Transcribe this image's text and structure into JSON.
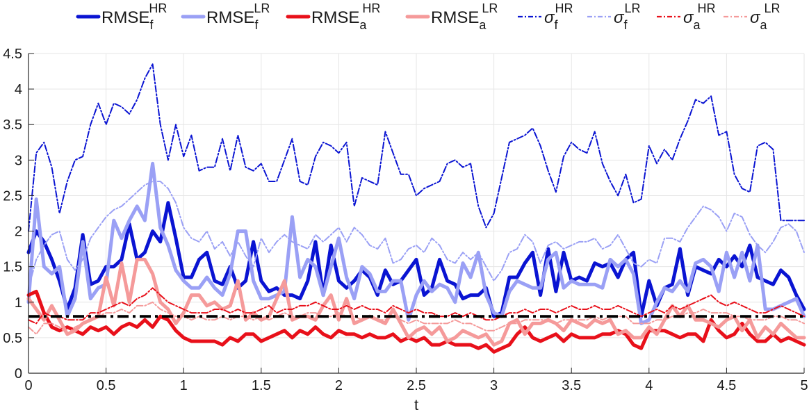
{
  "chart_data": {
    "type": "line",
    "xlabel": "t",
    "ylabel": "",
    "xlim": [
      0,
      5
    ],
    "ylim": [
      0,
      4.5
    ],
    "x_ticks": [
      0,
      0.5,
      1,
      1.5,
      2,
      2.5,
      3,
      3.5,
      4,
      4.5,
      5
    ],
    "y_ticks": [
      0,
      0.5,
      1,
      1.5,
      2,
      2.5,
      3,
      3.5,
      4,
      4.5
    ],
    "x_tick_labels": [
      "0",
      "0.5",
      "1",
      "1.5",
      "2",
      "2.5",
      "3",
      "3.5",
      "4",
      "4.5",
      "5"
    ],
    "y_tick_labels": [
      "0",
      "0.5",
      "1",
      "1.5",
      "2",
      "2.5",
      "3",
      "3.5",
      "4",
      "4.5"
    ],
    "grid": true,
    "legend_position": "top, outside, horizontal",
    "x": [
      0.0,
      0.05,
      0.1,
      0.15,
      0.2,
      0.25,
      0.3,
      0.35,
      0.4,
      0.45,
      0.5,
      0.55,
      0.6,
      0.65,
      0.7,
      0.75,
      0.8,
      0.85,
      0.9,
      0.95,
      1.0,
      1.05,
      1.1,
      1.15,
      1.2,
      1.25,
      1.3,
      1.35,
      1.4,
      1.45,
      1.5,
      1.55,
      1.6,
      1.65,
      1.7,
      1.75,
      1.8,
      1.85,
      1.9,
      1.95,
      2.0,
      2.05,
      2.1,
      2.15,
      2.2,
      2.25,
      2.3,
      2.35,
      2.4,
      2.45,
      2.5,
      2.55,
      2.6,
      2.65,
      2.7,
      2.75,
      2.8,
      2.85,
      2.9,
      2.95,
      3.0,
      3.05,
      3.1,
      3.15,
      3.2,
      3.25,
      3.3,
      3.35,
      3.4,
      3.45,
      3.5,
      3.55,
      3.6,
      3.65,
      3.7,
      3.75,
      3.8,
      3.85,
      3.9,
      3.95,
      4.0,
      4.05,
      4.1,
      4.15,
      4.2,
      4.25,
      4.3,
      4.35,
      4.4,
      4.45,
      4.5,
      4.55,
      4.6,
      4.65,
      4.7,
      4.75,
      4.8,
      4.85,
      4.9,
      4.95,
      5.0
    ],
    "series": [
      {
        "name_main": "RMSE",
        "name_sub": "f",
        "name_sup": "HR",
        "color": "#0a14d2",
        "style": "solid",
        "width": 5,
        "values": [
          1.7,
          2.0,
          1.85,
          1.6,
          1.3,
          0.9,
          1.2,
          1.95,
          1.25,
          1.3,
          1.5,
          1.5,
          1.6,
          2.1,
          1.6,
          1.7,
          2.0,
          1.85,
          2.4,
          1.9,
          1.35,
          1.35,
          1.6,
          1.7,
          1.3,
          1.25,
          1.5,
          1.2,
          1.3,
          1.85,
          1.3,
          1.15,
          1.2,
          1.1,
          1.1,
          1.05,
          1.3,
          1.85,
          1.1,
          1.8,
          1.3,
          1.2,
          1.3,
          1.45,
          1.35,
          1.1,
          1.45,
          1.25,
          1.3,
          1.45,
          1.6,
          1.1,
          1.2,
          1.6,
          1.3,
          1.25,
          1.05,
          1.1,
          1.1,
          1.2,
          0.8,
          0.85,
          1.35,
          1.35,
          1.55,
          1.7,
          1.1,
          1.75,
          1.15,
          1.7,
          1.3,
          1.35,
          1.3,
          1.55,
          1.5,
          1.55,
          1.35,
          1.6,
          1.7,
          0.8,
          1.3,
          0.95,
          1.2,
          1.25,
          1.75,
          1.1,
          1.5,
          1.45,
          1.4,
          1.6,
          1.5,
          1.65,
          1.5,
          1.8,
          1.35,
          1.3,
          1.25,
          1.45,
          1.35,
          1.1,
          0.9
        ]
      },
      {
        "name_main": "RMSE",
        "name_sub": "f",
        "name_sup": "LR",
        "color": "#9aa0f5",
        "style": "solid",
        "width": 5,
        "values": [
          1.0,
          2.45,
          1.5,
          1.4,
          1.5,
          0.8,
          1.05,
          1.85,
          1.05,
          1.2,
          1.25,
          2.15,
          1.9,
          2.15,
          2.35,
          2.15,
          2.95,
          2.05,
          1.8,
          1.45,
          1.3,
          1.2,
          1.2,
          1.35,
          1.2,
          1.1,
          1.4,
          2.0,
          2.0,
          1.3,
          1.05,
          1.05,
          1.1,
          1.15,
          2.2,
          1.35,
          1.6,
          1.5,
          1.1,
          1.5,
          1.9,
          1.35,
          1.05,
          1.5,
          1.4,
          1.15,
          1.15,
          1.3,
          1.3,
          0.75,
          1.1,
          1.3,
          1.15,
          1.25,
          1.2,
          1.0,
          1.55,
          1.35,
          1.7,
          1.1,
          0.85,
          0.8,
          1.15,
          1.3,
          1.25,
          1.2,
          1.2,
          1.6,
          1.7,
          1.2,
          1.3,
          1.25,
          1.25,
          1.25,
          1.2,
          1.6,
          1.5,
          1.6,
          1.4,
          0.7,
          0.75,
          1.0,
          1.2,
          1.15,
          1.3,
          1.15,
          1.55,
          1.6,
          1.5,
          1.15,
          1.7,
          1.35,
          1.7,
          1.3,
          1.8,
          0.9,
          0.9,
          0.95,
          1.0,
          1.05,
          0.8
        ]
      },
      {
        "name_main": "RMSE",
        "name_sub": "a",
        "name_sup": "HR",
        "color": "#e8101a",
        "style": "solid",
        "width": 5,
        "values": [
          1.1,
          1.15,
          0.85,
          0.65,
          0.6,
          0.65,
          0.6,
          0.55,
          0.65,
          0.6,
          0.65,
          0.55,
          0.65,
          0.7,
          0.65,
          0.75,
          0.65,
          0.8,
          0.75,
          0.6,
          0.5,
          0.45,
          0.45,
          0.45,
          0.45,
          0.4,
          0.5,
          0.45,
          0.55,
          0.55,
          0.45,
          0.5,
          0.55,
          0.6,
          0.5,
          0.6,
          0.55,
          0.65,
          0.55,
          0.5,
          0.6,
          0.55,
          0.55,
          0.5,
          0.55,
          0.5,
          0.5,
          0.55,
          0.45,
          0.5,
          0.45,
          0.5,
          0.4,
          0.4,
          0.45,
          0.4,
          0.4,
          0.4,
          0.35,
          0.4,
          0.3,
          0.35,
          0.4,
          0.55,
          0.65,
          0.5,
          0.45,
          0.5,
          0.55,
          0.45,
          0.55,
          0.5,
          0.5,
          0.5,
          0.55,
          0.55,
          0.6,
          0.55,
          0.4,
          0.35,
          0.6,
          0.6,
          0.6,
          0.55,
          0.5,
          0.55,
          0.55,
          0.45,
          0.75,
          0.6,
          0.5,
          0.55,
          0.7,
          0.55,
          0.45,
          0.45,
          0.55,
          0.45,
          0.5,
          0.45,
          0.4
        ]
      },
      {
        "name_main": "RMSE",
        "name_sub": "a",
        "name_sup": "LR",
        "color": "#f59a9a",
        "style": "solid",
        "width": 5,
        "values": [
          1.05,
          0.9,
          0.75,
          0.95,
          0.75,
          0.55,
          0.6,
          0.7,
          0.75,
          0.8,
          1.35,
          0.95,
          1.55,
          1.0,
          1.6,
          1.6,
          1.4,
          1.0,
          0.9,
          0.7,
          0.85,
          1.1,
          1.1,
          0.95,
          1.0,
          0.9,
          0.95,
          1.3,
          0.75,
          0.85,
          0.75,
          0.8,
          1.05,
          1.3,
          0.75,
          0.8,
          0.8,
          0.75,
          0.95,
          1.1,
          0.75,
          1.05,
          0.7,
          0.75,
          0.8,
          0.75,
          0.7,
          0.9,
          0.7,
          0.5,
          0.6,
          0.65,
          0.55,
          0.65,
          0.45,
          0.5,
          0.6,
          0.55,
          0.5,
          0.55,
          0.4,
          0.45,
          0.7,
          0.75,
          0.55,
          0.7,
          0.7,
          0.75,
          0.7,
          0.6,
          0.75,
          0.7,
          0.65,
          0.75,
          0.7,
          0.75,
          0.55,
          0.6,
          0.5,
          0.5,
          0.65,
          0.55,
          0.75,
          0.95,
          0.8,
          0.95,
          0.75,
          0.75,
          0.7,
          0.65,
          0.75,
          0.8,
          0.6,
          0.75,
          0.5,
          0.65,
          0.55,
          0.7,
          0.6,
          0.5,
          0.5
        ]
      },
      {
        "name_main": "σ",
        "name_sub": "f",
        "name_sup": "HR",
        "color": "#0a14d2",
        "style": "dashdot",
        "width": 2,
        "values": [
          2.0,
          3.1,
          3.25,
          2.9,
          2.25,
          2.7,
          3.0,
          3.05,
          3.5,
          3.8,
          3.5,
          3.8,
          3.75,
          3.65,
          3.85,
          4.15,
          4.35,
          3.5,
          3.0,
          3.5,
          3.05,
          3.35,
          2.85,
          2.9,
          2.9,
          3.3,
          2.85,
          3.35,
          2.9,
          2.85,
          2.95,
          2.7,
          2.7,
          3.0,
          3.3,
          2.7,
          2.65,
          3.05,
          3.25,
          3.2,
          3.1,
          3.25,
          2.35,
          2.75,
          2.7,
          2.65,
          3.4,
          3.1,
          2.8,
          2.8,
          2.5,
          2.6,
          2.65,
          2.7,
          2.95,
          3.0,
          2.9,
          2.95,
          2.35,
          2.05,
          2.25,
          2.75,
          3.25,
          3.3,
          3.35,
          3.45,
          3.2,
          2.85,
          2.55,
          3.05,
          3.25,
          3.15,
          3.1,
          3.4,
          2.95,
          2.7,
          2.5,
          2.8,
          2.4,
          2.45,
          3.2,
          2.95,
          3.15,
          3.0,
          3.3,
          3.55,
          3.85,
          3.8,
          3.9,
          3.35,
          3.4,
          2.8,
          2.6,
          2.55,
          3.2,
          3.25,
          3.15,
          2.15,
          2.15,
          2.15,
          2.15
        ]
      },
      {
        "name_main": "σ",
        "name_sub": "f",
        "name_sup": "LR",
        "color": "#9aa0f5",
        "style": "dashdot",
        "width": 2,
        "values": [
          1.2,
          1.6,
          1.8,
          1.95,
          2.0,
          1.6,
          1.45,
          1.6,
          1.9,
          2.05,
          2.2,
          2.3,
          2.35,
          2.45,
          2.55,
          2.65,
          2.7,
          2.7,
          2.6,
          2.4,
          2.05,
          1.9,
          1.85,
          2.0,
          1.75,
          1.85,
          1.65,
          1.85,
          1.65,
          1.5,
          1.9,
          1.7,
          1.85,
          1.95,
          1.85,
          1.8,
          1.75,
          1.95,
          1.85,
          1.95,
          2.05,
          1.85,
          2.05,
          1.95,
          1.8,
          1.75,
          1.9,
          1.55,
          1.6,
          1.75,
          1.8,
          1.7,
          1.9,
          1.8,
          1.6,
          1.55,
          1.7,
          1.6,
          1.7,
          1.5,
          1.3,
          1.45,
          1.7,
          1.75,
          1.95,
          1.85,
          1.55,
          1.8,
          1.85,
          1.75,
          1.8,
          1.85,
          1.85,
          1.9,
          1.75,
          1.8,
          1.95,
          1.75,
          1.55,
          1.5,
          1.6,
          1.55,
          1.9,
          1.9,
          1.85,
          2.05,
          2.2,
          2.35,
          2.3,
          2.2,
          2.0,
          2.25,
          2.2,
          1.95,
          1.8,
          1.7,
          1.85,
          2.05,
          2.1,
          2.0,
          1.7
        ]
      },
      {
        "name_main": "σ",
        "name_sub": "a",
        "name_sup": "HR",
        "color": "#e8101a",
        "style": "dashdot",
        "width": 2,
        "values": [
          0.75,
          0.7,
          0.85,
          0.8,
          0.8,
          0.75,
          0.75,
          0.75,
          0.85,
          0.85,
          0.9,
          0.95,
          1.0,
          0.95,
          1.05,
          1.1,
          1.2,
          1.1,
          1.0,
          0.95,
          0.9,
          0.85,
          0.85,
          0.85,
          0.9,
          0.9,
          0.85,
          0.9,
          0.85,
          0.85,
          0.9,
          0.95,
          0.85,
          0.9,
          0.9,
          0.95,
          0.95,
          1.0,
          0.95,
          0.9,
          0.9,
          0.95,
          0.9,
          0.95,
          0.9,
          0.9,
          0.85,
          0.95,
          0.9,
          0.85,
          0.9,
          0.85,
          0.85,
          0.8,
          0.8,
          0.85,
          0.8,
          0.85,
          0.8,
          0.75,
          0.75,
          0.8,
          0.85,
          0.85,
          0.9,
          0.85,
          0.9,
          0.9,
          0.85,
          0.9,
          0.95,
          0.9,
          0.9,
          0.95,
          0.9,
          0.9,
          0.95,
          0.9,
          0.85,
          0.8,
          0.85,
          0.9,
          0.85,
          0.95,
          0.9,
          0.95,
          1.0,
          1.05,
          1.1,
          1.0,
          0.95,
          1.0,
          0.95,
          0.9,
          0.85,
          0.85,
          0.9,
          0.95,
          0.9,
          0.85,
          0.8
        ]
      },
      {
        "name_main": "σ",
        "name_sub": "a",
        "name_sup": "LR",
        "color": "#f59a9a",
        "style": "dashdot",
        "width": 2,
        "values": [
          0.65,
          0.55,
          0.7,
          0.7,
          0.65,
          0.55,
          0.65,
          0.7,
          0.75,
          0.8,
          0.85,
          0.85,
          0.9,
          0.85,
          0.95,
          0.95,
          1.0,
          0.9,
          0.85,
          0.8,
          0.8,
          0.75,
          0.8,
          0.75,
          0.75,
          0.8,
          0.75,
          0.8,
          0.8,
          0.75,
          0.8,
          0.75,
          0.8,
          0.85,
          0.8,
          0.8,
          0.85,
          0.85,
          0.8,
          0.8,
          0.85,
          0.8,
          0.8,
          0.75,
          0.8,
          0.75,
          0.75,
          0.8,
          0.75,
          0.7,
          0.75,
          0.7,
          0.7,
          0.7,
          0.7,
          0.75,
          0.7,
          0.7,
          0.65,
          0.6,
          0.6,
          0.65,
          0.7,
          0.7,
          0.75,
          0.75,
          0.75,
          0.75,
          0.7,
          0.75,
          0.75,
          0.75,
          0.75,
          0.8,
          0.75,
          0.8,
          0.8,
          0.8,
          0.7,
          0.7,
          0.7,
          0.75,
          0.75,
          0.8,
          0.8,
          0.85,
          0.85,
          0.9,
          0.85,
          0.85,
          0.85,
          0.8,
          0.8,
          0.75,
          0.75,
          0.75,
          0.8,
          0.8,
          0.75,
          0.75,
          0.7
        ]
      }
    ],
    "reference_line": {
      "y": 0.8,
      "color": "#000000",
      "style": "dashdot"
    }
  }
}
